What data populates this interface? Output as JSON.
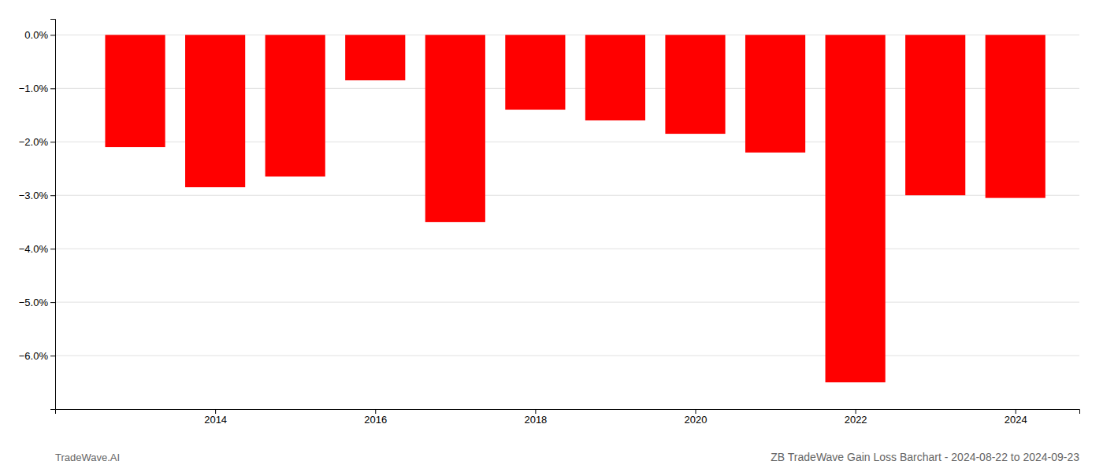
{
  "chart_data": {
    "type": "bar",
    "title": "ZB TradeWave Gain Loss Barchart - 2024-08-22 to 2024-09-23",
    "annotations": [
      "TradeWave.AI"
    ],
    "x": [
      2013,
      2014,
      2015,
      2016,
      2017,
      2018,
      2019,
      2020,
      2021,
      2022,
      2023,
      2024
    ],
    "values": [
      -2.1,
      -2.85,
      -2.65,
      -0.85,
      -3.5,
      -1.4,
      -1.6,
      -1.85,
      -2.2,
      -6.5,
      -3.0,
      -3.05
    ],
    "color": "#ff0000",
    "xlim": [
      2012,
      2024.8
    ],
    "xticks": [
      2014,
      2016,
      2018,
      2020,
      2022,
      2024
    ],
    "ylim": [
      -7.0,
      0.3
    ],
    "yticks": [
      {
        "value": 0.0,
        "label": "0.0%"
      },
      {
        "value": -1.0,
        "label": "−1.0%"
      },
      {
        "value": -2.0,
        "label": "−2.0%"
      },
      {
        "value": -3.0,
        "label": "−3.0%"
      },
      {
        "value": -4.0,
        "label": "−4.0%"
      },
      {
        "value": -5.0,
        "label": "−5.0%"
      },
      {
        "value": -6.0,
        "label": "−6.0%"
      }
    ],
    "grid": true
  }
}
